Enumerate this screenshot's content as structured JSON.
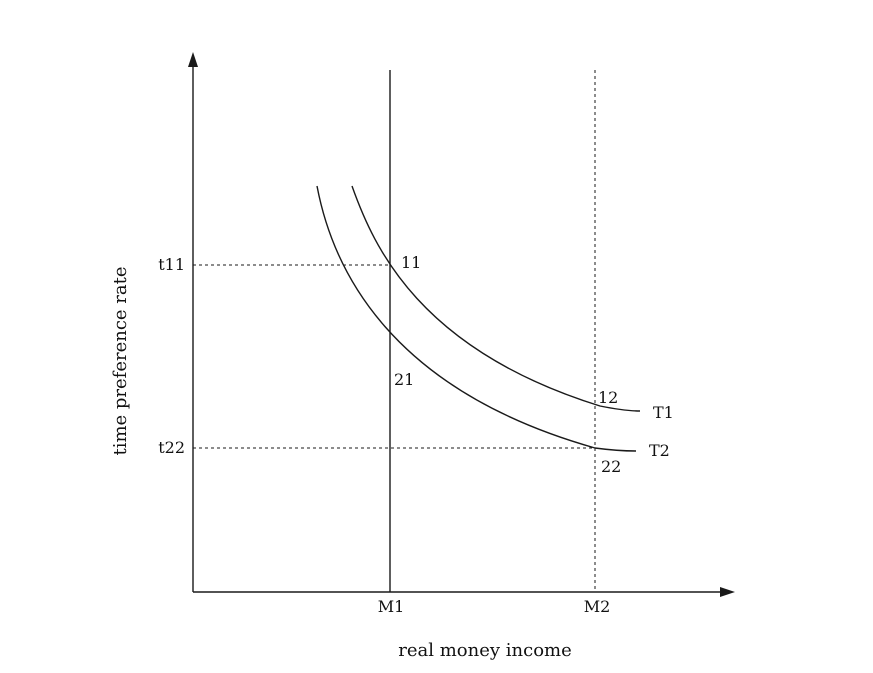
{
  "axes": {
    "x_title": "real money income",
    "y_title": "time preference rate"
  },
  "x_ticks": {
    "m1": "M1",
    "m2": "M2"
  },
  "y_ticks": {
    "t11": "t11",
    "t22": "t22"
  },
  "curves": {
    "t1": "T1",
    "t2": "T2"
  },
  "points": {
    "p11": "11",
    "p12": "12",
    "p21": "21",
    "p22": "22"
  }
}
